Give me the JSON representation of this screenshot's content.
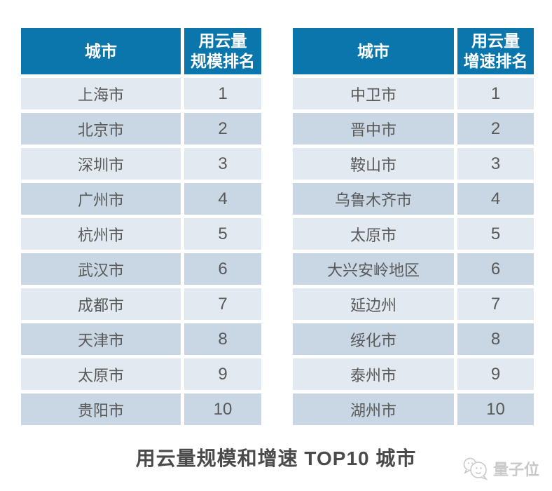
{
  "page": {
    "caption": "用云量规模和增速 TOP10 城市",
    "watermark": "量子位"
  },
  "colors": {
    "header_bg": "#0a76ac",
    "row_light": "#e3e9f0",
    "row_dark": "#c8d7e3",
    "cell_text": "#595959",
    "caption_text": "#4a4a4a",
    "watermark": "#c9c9c9"
  },
  "tables": [
    {
      "name": "cloud-usage-scale-ranking",
      "col1_header": "城市",
      "col2_header": [
        "用云量",
        "规模排名"
      ],
      "rows": [
        [
          "上海市",
          "1"
        ],
        [
          "北京市",
          "2"
        ],
        [
          "深圳市",
          "3"
        ],
        [
          "广州市",
          "4"
        ],
        [
          "杭州市",
          "5"
        ],
        [
          "武汉市",
          "6"
        ],
        [
          "成都市",
          "7"
        ],
        [
          "天津市",
          "8"
        ],
        [
          "太原市",
          "9"
        ],
        [
          "贵阳市",
          "10"
        ]
      ]
    },
    {
      "name": "cloud-usage-growth-ranking",
      "col1_header": "城市",
      "col2_header": [
        "用云量",
        "增速排名"
      ],
      "rows": [
        [
          "中卫市",
          "1"
        ],
        [
          "晋中市",
          "2"
        ],
        [
          "鞍山市",
          "3"
        ],
        [
          "乌鲁木齐市",
          "4"
        ],
        [
          "太原市",
          "5"
        ],
        [
          "大兴安岭地区",
          "6"
        ],
        [
          "延边州",
          "7"
        ],
        [
          "绥化市",
          "8"
        ],
        [
          "泰州市",
          "9"
        ],
        [
          "湖州市",
          "10"
        ]
      ]
    }
  ],
  "chart_data": [
    {
      "type": "table",
      "title": "用云量规模排名 TOP10",
      "columns": [
        "城市",
        "用云量规模排名"
      ],
      "rows": [
        [
          "上海市",
          1
        ],
        [
          "北京市",
          2
        ],
        [
          "深圳市",
          3
        ],
        [
          "广州市",
          4
        ],
        [
          "杭州市",
          5
        ],
        [
          "武汉市",
          6
        ],
        [
          "成都市",
          7
        ],
        [
          "天津市",
          8
        ],
        [
          "太原市",
          9
        ],
        [
          "贵阳市",
          10
        ]
      ]
    },
    {
      "type": "table",
      "title": "用云量增速排名 TOP10",
      "columns": [
        "城市",
        "用云量增速排名"
      ],
      "rows": [
        [
          "中卫市",
          1
        ],
        [
          "晋中市",
          2
        ],
        [
          "鞍山市",
          3
        ],
        [
          "乌鲁木齐市",
          4
        ],
        [
          "太原市",
          5
        ],
        [
          "大兴安岭地区",
          6
        ],
        [
          "延边州",
          7
        ],
        [
          "绥化市",
          8
        ],
        [
          "泰州市",
          9
        ],
        [
          "湖州市",
          10
        ]
      ]
    }
  ]
}
